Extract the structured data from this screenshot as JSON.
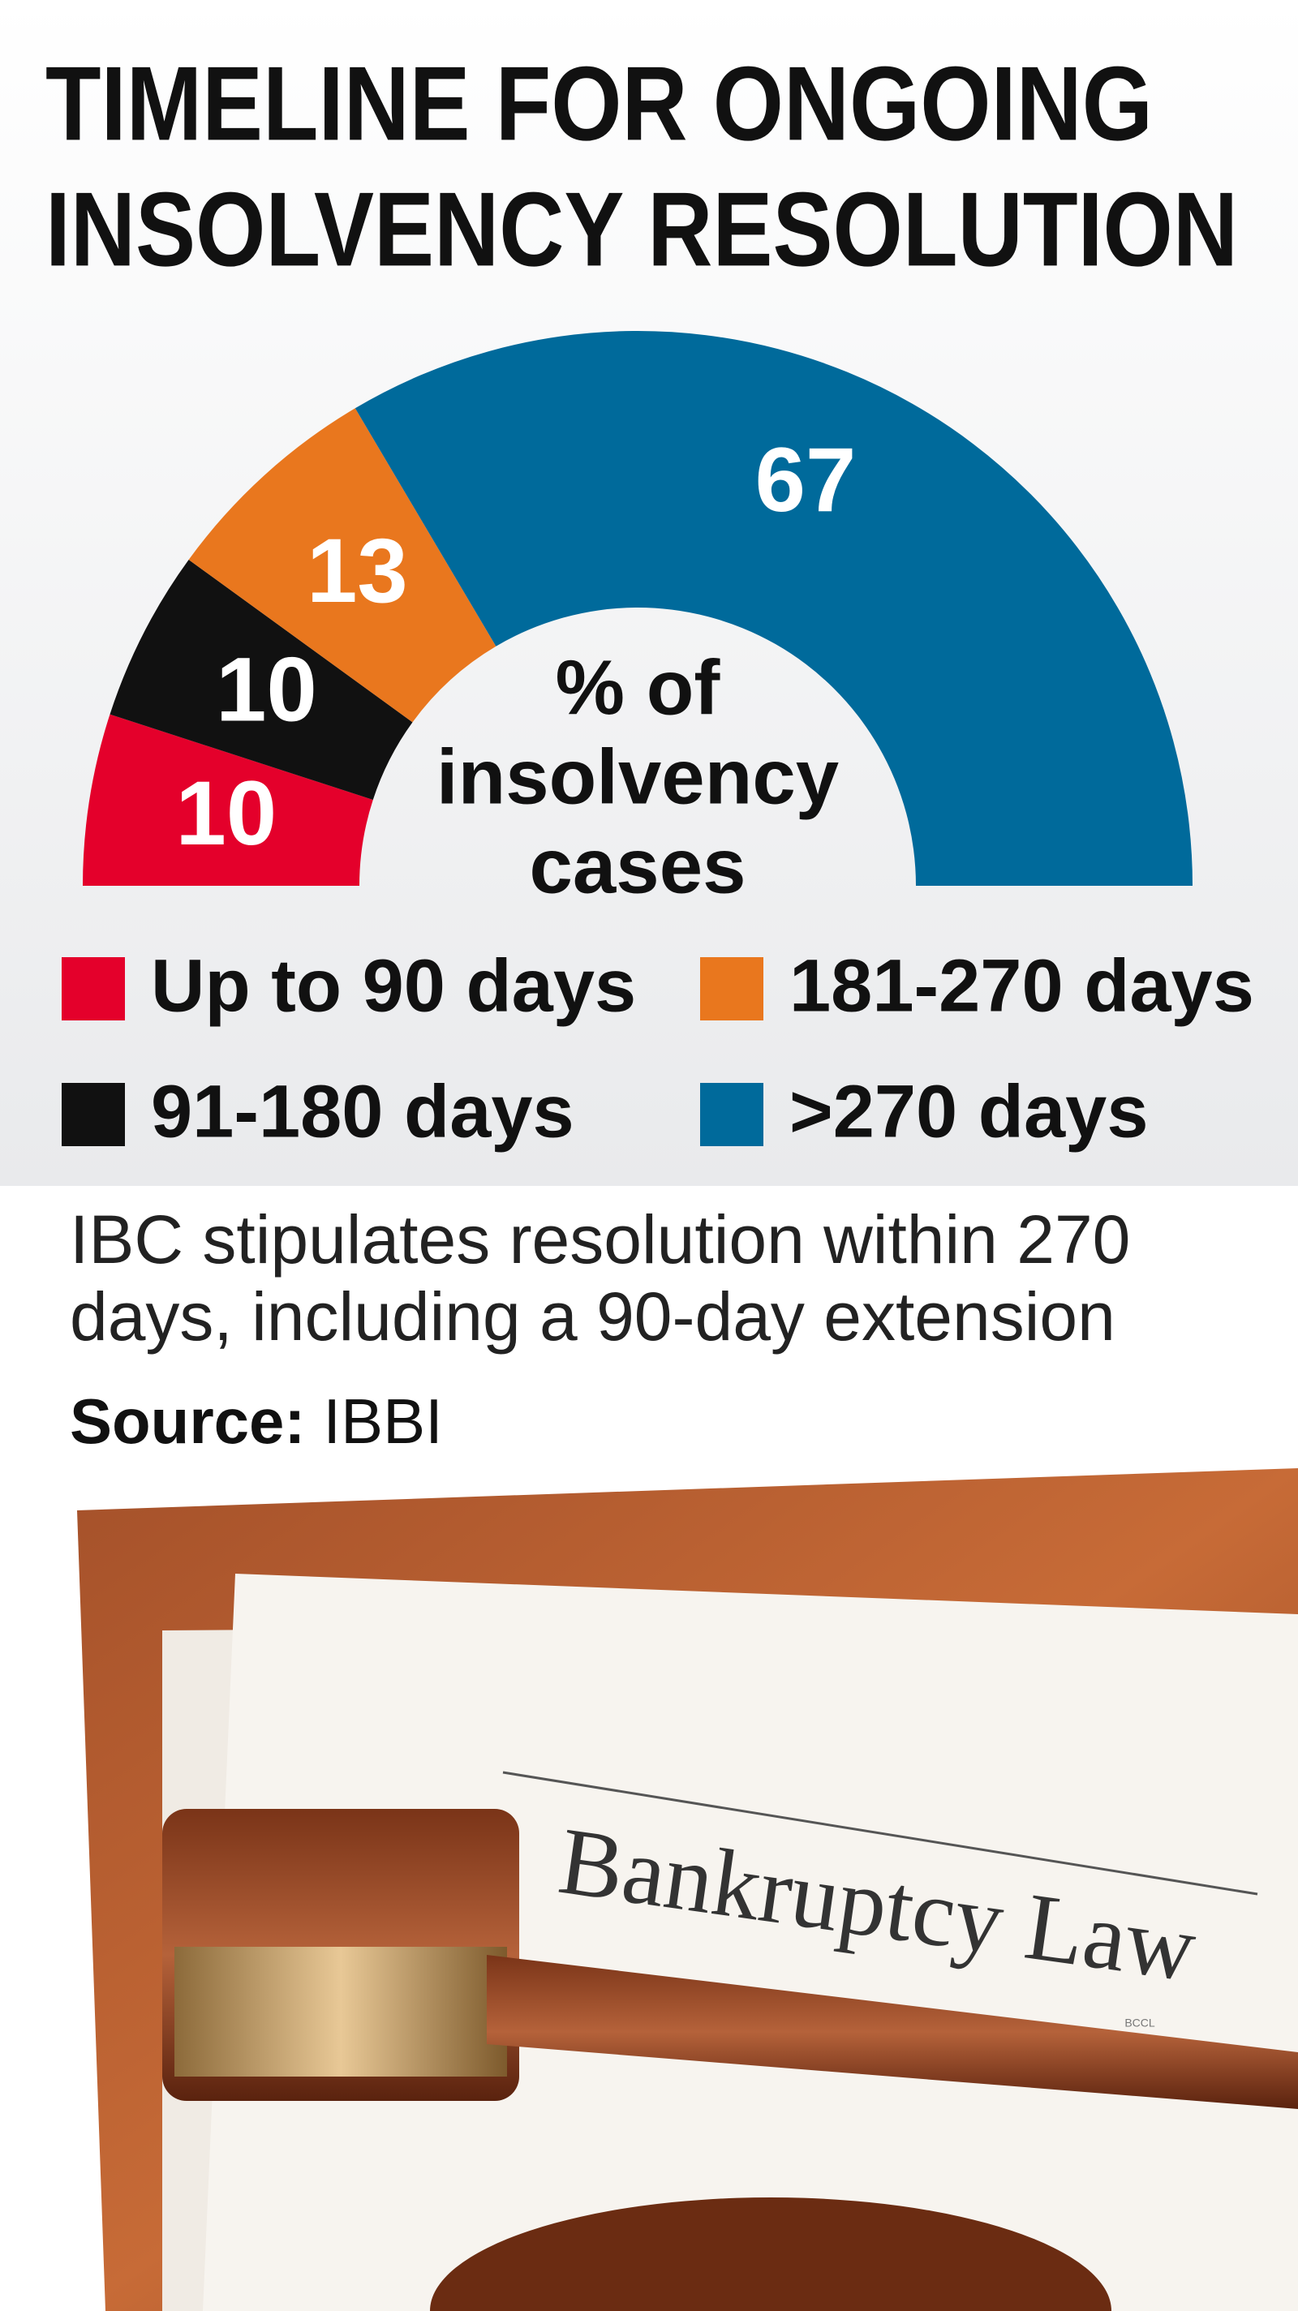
{
  "chart_data": {
    "type": "semidonut",
    "title": [
      "TIMELINE FOR ONGOING",
      "INSOLVENCY RESOLUTION"
    ],
    "center_label": [
      "% of",
      "insolvency",
      "cases"
    ],
    "categories": [
      "Up to 90 days",
      "91-180 days",
      "181-270 days",
      ">270 days"
    ],
    "values": [
      10,
      10,
      13,
      67
    ],
    "colors": [
      "#e4002b",
      "#111111",
      "#e9771e",
      "#006a9b"
    ],
    "note": [
      "IBC stipulates resolution within 270",
      "days, including a 90-day extension"
    ],
    "source_label": "Source:",
    "source": "IBBI"
  },
  "photo": {
    "text": "Bankruptcy Law",
    "credit": "BCCL"
  }
}
